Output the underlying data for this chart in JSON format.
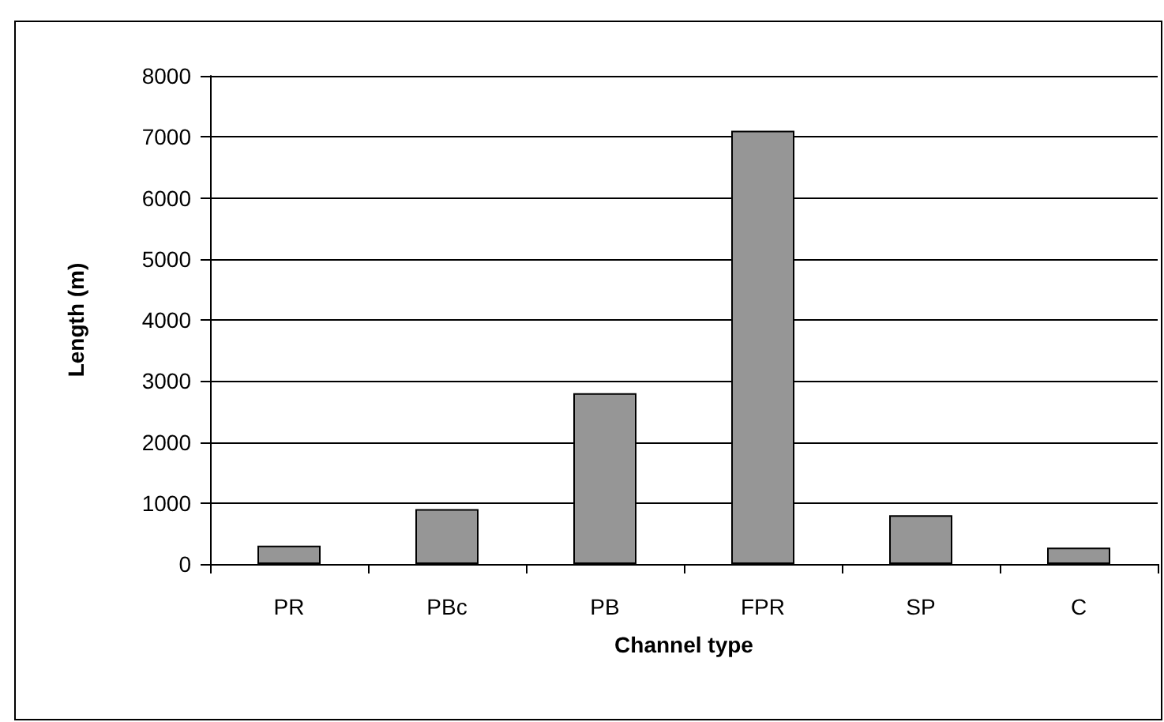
{
  "chart_data": {
    "type": "bar",
    "xlabel": "Channel type",
    "ylabel": "Length (m)",
    "categories": [
      "PR",
      "PBc",
      "PB",
      "FPR",
      "SP",
      "C"
    ],
    "values": [
      300,
      900,
      2800,
      7100,
      800,
      270
    ],
    "color": "#969696",
    "ylim": [
      0,
      8000
    ],
    "yticks": [
      0,
      1000,
      2000,
      3000,
      4000,
      5000,
      6000,
      7000,
      8000
    ],
    "grid": "y"
  }
}
